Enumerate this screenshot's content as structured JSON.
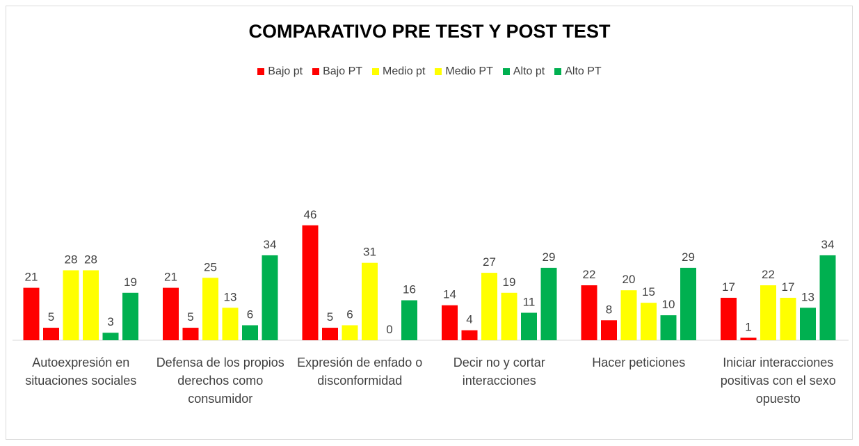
{
  "chart_data": {
    "type": "bar",
    "title": "COMPARATIVO PRE TEST Y POST TEST",
    "categories": [
      "Autoexpresión en situaciones sociales",
      "Defensa de los propios derechos como consumidor",
      "Expresión de enfado o disconformidad",
      "Decir no y cortar interacciones",
      "Hacer peticiones",
      "Iniciar interacciones positivas con el sexo opuesto"
    ],
    "series": [
      {
        "name": "Bajo pt",
        "color": "#ff0000",
        "values": [
          21,
          21,
          46,
          14,
          22,
          17
        ]
      },
      {
        "name": "Bajo PT",
        "color": "#ff0000",
        "values": [
          5,
          5,
          5,
          4,
          8,
          1
        ]
      },
      {
        "name": "Medio pt",
        "color": "#ffff00",
        "values": [
          28,
          25,
          6,
          27,
          20,
          22
        ]
      },
      {
        "name": "Medio PT",
        "color": "#ffff00",
        "values": [
          28,
          13,
          31,
          19,
          15,
          17
        ]
      },
      {
        "name": "Alto pt",
        "color": "#00b050",
        "values": [
          3,
          6,
          0,
          11,
          10,
          13
        ]
      },
      {
        "name": "Alto PT",
        "color": "#00b050",
        "values": [
          19,
          34,
          16,
          29,
          29,
          34
        ]
      }
    ],
    "legend": "top"
  }
}
